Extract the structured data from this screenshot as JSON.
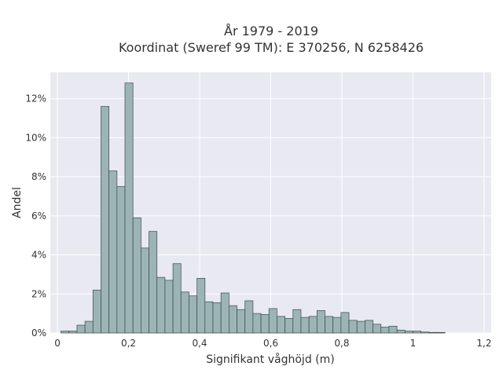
{
  "chart_data": {
    "type": "bar",
    "title": "År 1979 - 2019",
    "subtitle": "Koordinat (Sweref 99 TM): E 370256, N 6258426",
    "xlabel": "Signifikant våghöjd (m)",
    "ylabel": "Andel",
    "xlim": [
      -0.02,
      1.22
    ],
    "ylim": [
      0,
      0.1335
    ],
    "grid": true,
    "legend": "none",
    "bar_color": "#9cb4b4",
    "edge_color": "#3a4a4a",
    "plot_background": "#e9e9f1",
    "x_ticks": [
      {
        "value": 0,
        "label": "0"
      },
      {
        "value": 0.2,
        "label": "0,2"
      },
      {
        "value": 0.4,
        "label": "0,4"
      },
      {
        "value": 0.6,
        "label": "0,6"
      },
      {
        "value": 0.8,
        "label": "0,8"
      },
      {
        "value": 1.0,
        "label": "1"
      },
      {
        "value": 1.2,
        "label": "1,2"
      }
    ],
    "y_ticks": [
      {
        "value": 0,
        "label": "0%"
      },
      {
        "value": 0.02,
        "label": "2%"
      },
      {
        "value": 0.04,
        "label": "4%"
      },
      {
        "value": 0.06,
        "label": "6%"
      },
      {
        "value": 0.08,
        "label": "8%"
      },
      {
        "value": 0.1,
        "label": "10%"
      },
      {
        "value": 0.12,
        "label": "12%"
      }
    ],
    "bin_width": 0.0225,
    "bin_start": 0.01,
    "values": [
      0.001,
      0.001,
      0.004,
      0.006,
      0.022,
      0.116,
      0.083,
      0.075,
      0.128,
      0.059,
      0.0435,
      0.052,
      0.0285,
      0.027,
      0.0355,
      0.021,
      0.019,
      0.028,
      0.016,
      0.0155,
      0.0205,
      0.014,
      0.012,
      0.0165,
      0.01,
      0.0095,
      0.0125,
      0.0085,
      0.0075,
      0.012,
      0.008,
      0.0085,
      0.0115,
      0.0085,
      0.008,
      0.0105,
      0.0065,
      0.006,
      0.0065,
      0.0045,
      0.003,
      0.0035,
      0.0015,
      0.001,
      0.001,
      0.0005,
      0.0003,
      0.0003
    ]
  }
}
